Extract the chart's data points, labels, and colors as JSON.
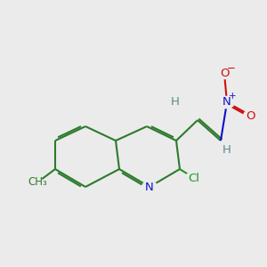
{
  "bg_color": "#ebebeb",
  "bond_color": "#2d7a2d",
  "N_color": "#1010cc",
  "O_color": "#cc1010",
  "Cl_color": "#1a9a1a",
  "H_color": "#5a8a8a",
  "line_width": 1.5,
  "dbo": 0.07,
  "font_size": 9.5,
  "fig_size": [
    3.0,
    3.0
  ],
  "dpi": 100,
  "xlim": [
    0,
    10
  ],
  "ylim": [
    0,
    10
  ]
}
